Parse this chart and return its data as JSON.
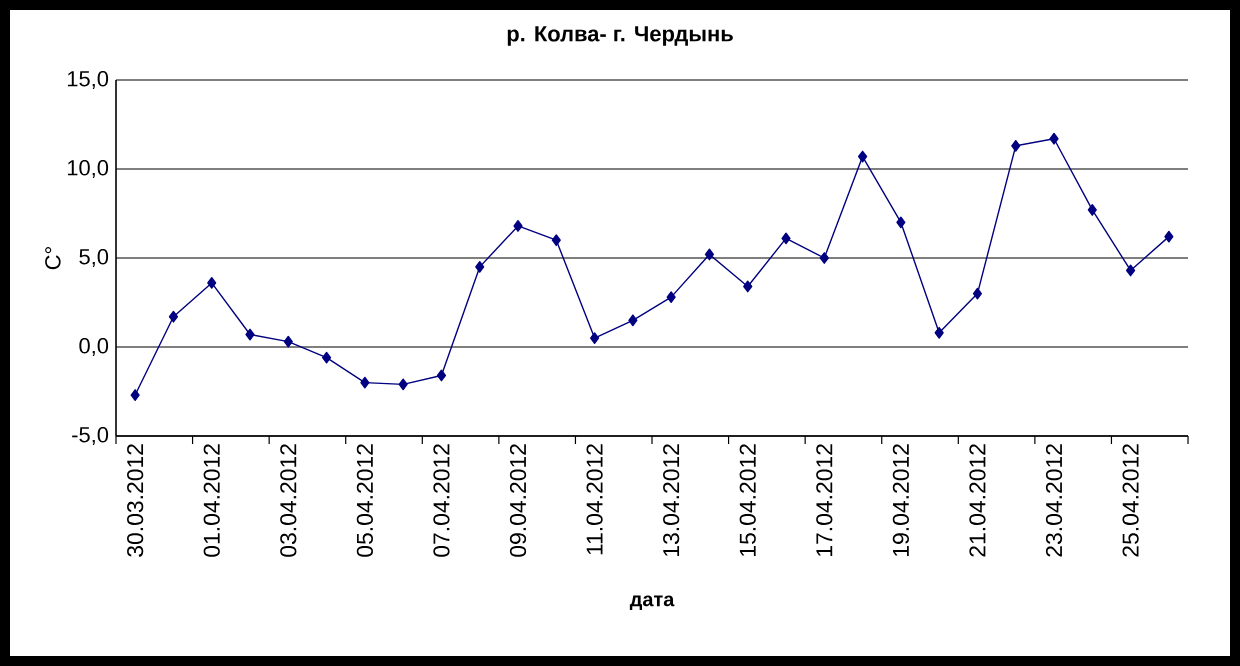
{
  "chart_data": {
    "type": "line",
    "title": "р. Колва- г. Чердынь",
    "xlabel": "дата",
    "ylabel": "С°",
    "categories": [
      "30.03.2012",
      null,
      "01.04.2012",
      null,
      "03.04.2012",
      null,
      "05.04.2012",
      null,
      "07.04.2012",
      null,
      "09.04.2012",
      null,
      "11.04.2012",
      null,
      "13.04.2012",
      null,
      "15.04.2012",
      null,
      "17.04.2012",
      null,
      "19.04.2012",
      null,
      "21.04.2012",
      null,
      "23.04.2012",
      null,
      "25.04.2012",
      null
    ],
    "series": [
      {
        "color": "#000080",
        "values": [
          -2.7,
          1.7,
          3.6,
          0.7,
          0.3,
          -0.6,
          -2.0,
          -2.1,
          -1.6,
          4.5,
          6.8,
          6.0,
          0.5,
          1.5,
          2.8,
          5.2,
          3.4,
          6.1,
          5.0,
          10.7,
          7.0,
          0.8,
          3.0,
          11.3,
          11.7,
          7.7,
          4.3,
          6.2
        ]
      }
    ],
    "ylim": [
      -5,
      15
    ],
    "yticks": [
      {
        "value": -5,
        "label": "-5,0"
      },
      {
        "value": 0,
        "label": "0,0"
      },
      {
        "value": 5,
        "label": "5,0"
      },
      {
        "value": 10,
        "label": "10,0"
      },
      {
        "value": 15,
        "label": "15,0"
      }
    ],
    "grid": "y",
    "legend": false,
    "marker": "diamond",
    "line_style": "solid"
  }
}
